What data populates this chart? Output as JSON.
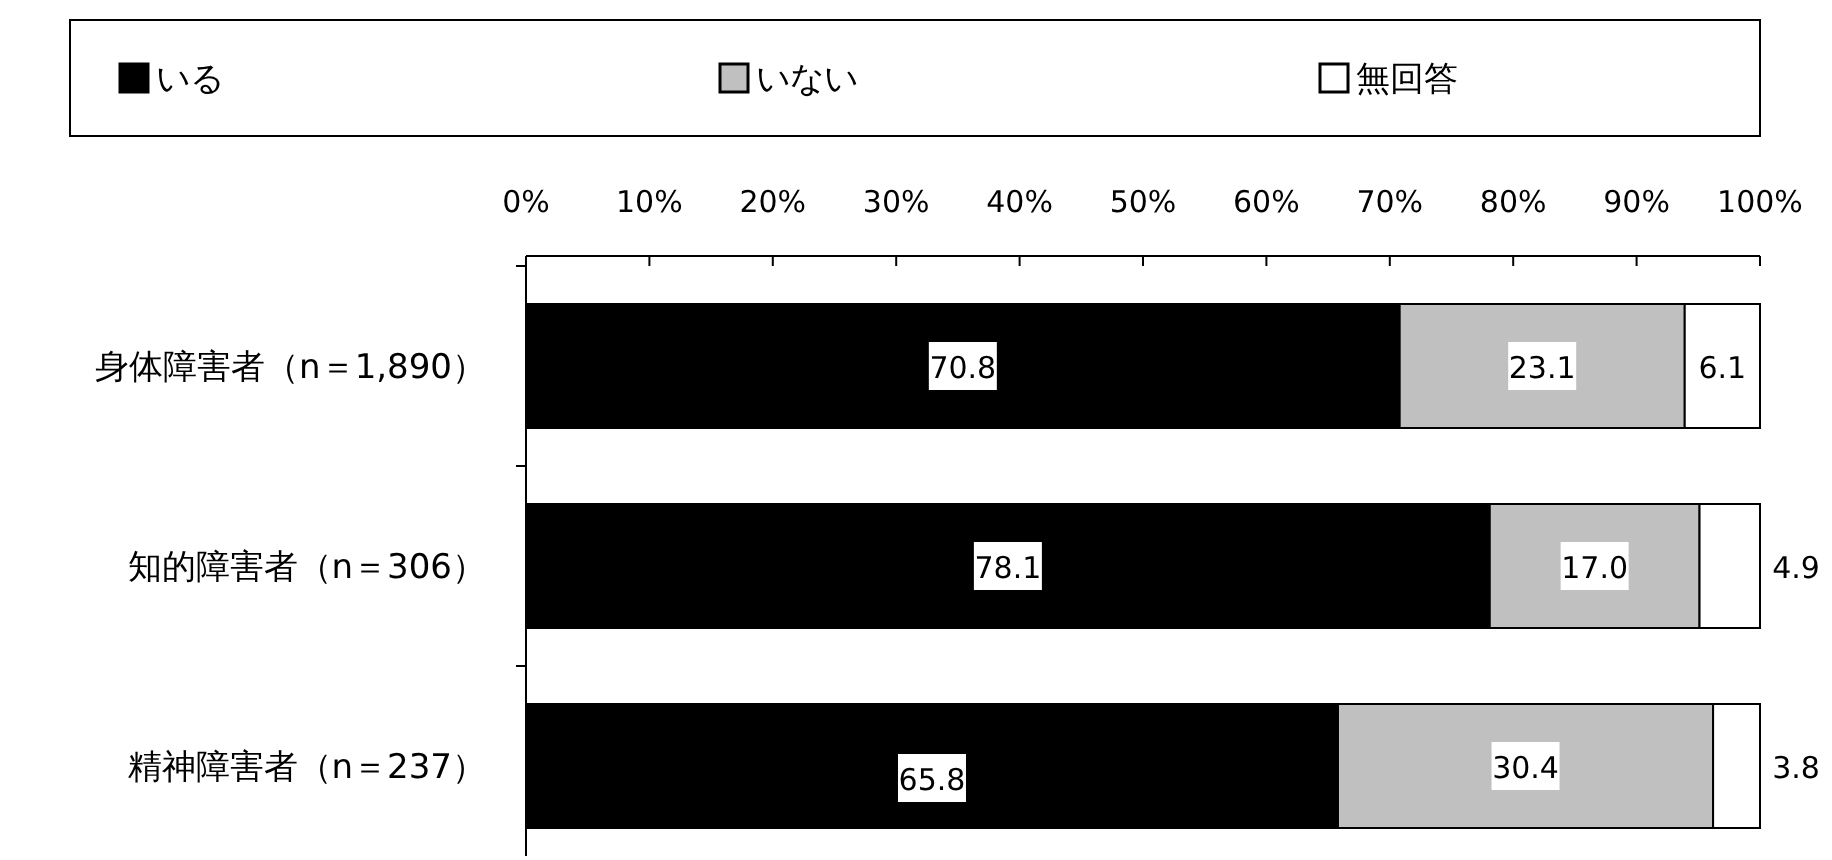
{
  "chart_data": {
    "type": "bar",
    "orientation": "horizontal",
    "stacked": true,
    "legend": "top",
    "categories": [
      "身体障害者（n＝1,890）",
      "知的障害者（n＝306）",
      "精神障害者（n＝237）"
    ],
    "series": [
      {
        "name": "いる",
        "color": "#000000",
        "values": [
          70.8,
          78.1,
          65.8
        ],
        "value_labels": [
          "70.8",
          "78.1",
          "65.8"
        ]
      },
      {
        "name": "いない",
        "color": "#c0c0c0",
        "values": [
          23.1,
          17.0,
          30.4
        ],
        "value_labels": [
          "23.1",
          "17.0",
          "30.4"
        ]
      },
      {
        "name": "無回答",
        "color": "#ffffff",
        "values": [
          6.1,
          4.9,
          3.8
        ],
        "value_labels": [
          "6.1",
          "4.9",
          "3.8"
        ]
      }
    ],
    "xlim": [
      0,
      100
    ],
    "xticks": [
      {
        "value": 0,
        "label": "0%"
      },
      {
        "value": 10,
        "label": "10%"
      },
      {
        "value": 20,
        "label": "20%"
      },
      {
        "value": 30,
        "label": "30%"
      },
      {
        "value": 40,
        "label": "40%"
      },
      {
        "value": 50,
        "label": "50%"
      },
      {
        "value": 60,
        "label": "60%"
      },
      {
        "value": 70,
        "label": "70%"
      },
      {
        "value": 80,
        "label": "80%"
      },
      {
        "value": 90,
        "label": "90%"
      },
      {
        "value": 100,
        "label": "100%"
      }
    ]
  }
}
